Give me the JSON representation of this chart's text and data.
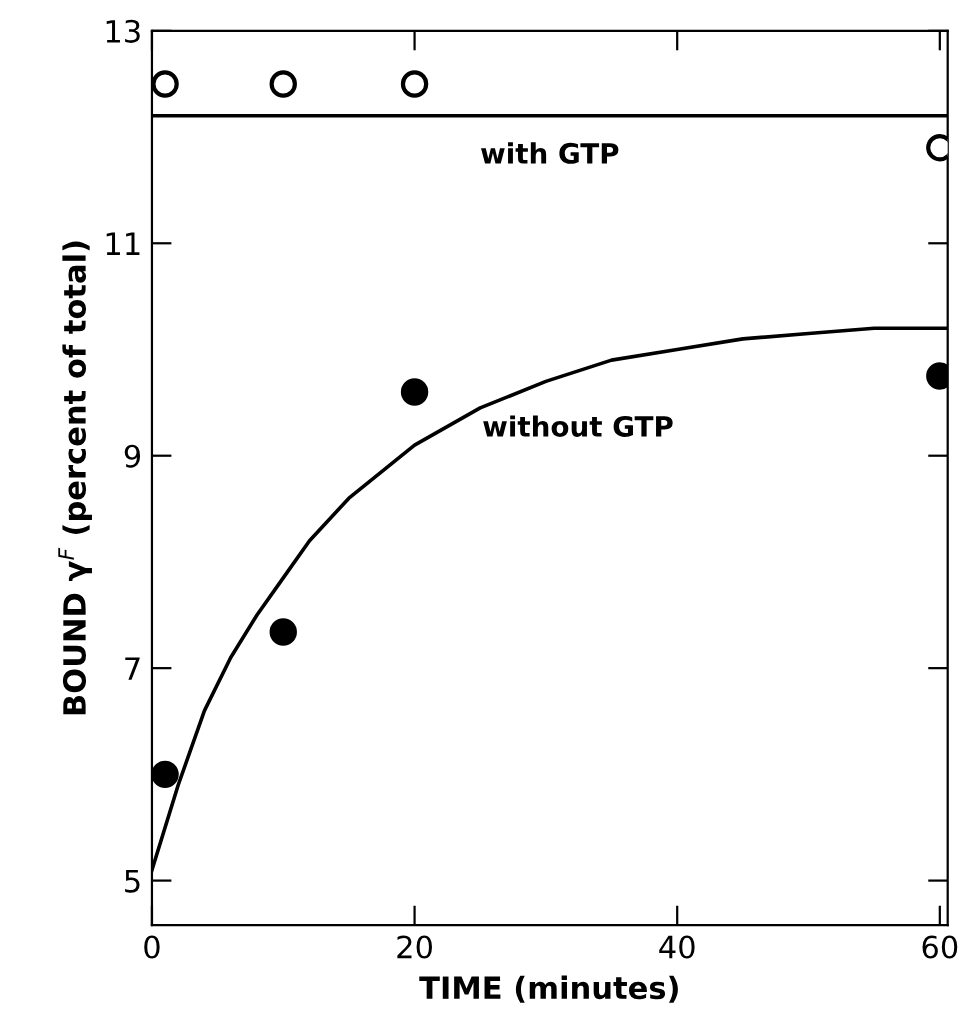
{
  "chart_data": {
    "type": "scatter",
    "xlabel": "TIME (minutes)",
    "ylabel": "BOUND γ$^{F}$ (percent of total)",
    "xlim": [
      0,
      60.6
    ],
    "xticks": [
      0,
      20,
      40,
      60
    ],
    "ylim": [
      4.58,
      13
    ],
    "yticks": [
      5,
      7,
      9,
      11,
      13
    ],
    "grid": false,
    "legend": false,
    "series": [
      {
        "marker": "circle",
        "color": "#ffffff",
        "x": [
          1,
          10,
          20,
          60
        ],
        "values": [
          12.5,
          12.5,
          12.5,
          11.9
        ]
      },
      {
        "marker": "circle",
        "color": "#000000",
        "x": [
          1,
          10,
          20,
          60
        ],
        "values": [
          6.0,
          7.34,
          9.6,
          9.75
        ]
      },
      {
        "type": "line",
        "marker": "none",
        "line_style": "solid",
        "color": "#000000",
        "x": [
          0,
          2,
          4,
          6,
          8,
          10,
          12,
          15,
          20,
          25,
          30,
          35,
          40,
          45,
          50,
          55,
          60.6
        ],
        "values": [
          5.1,
          5.9,
          6.6,
          7.1,
          7.5,
          7.85,
          8.2,
          8.6,
          9.1,
          9.45,
          9.7,
          9.9,
          10.0,
          10.1,
          10.15,
          10.2,
          10.2
        ]
      }
    ],
    "ref_lines": [
      {
        "axis": "y",
        "value": 12.2,
        "label": "with GTP",
        "color": "#000000",
        "line_style": "solid"
      }
    ],
    "annotations": [
      "without GTP"
    ]
  }
}
